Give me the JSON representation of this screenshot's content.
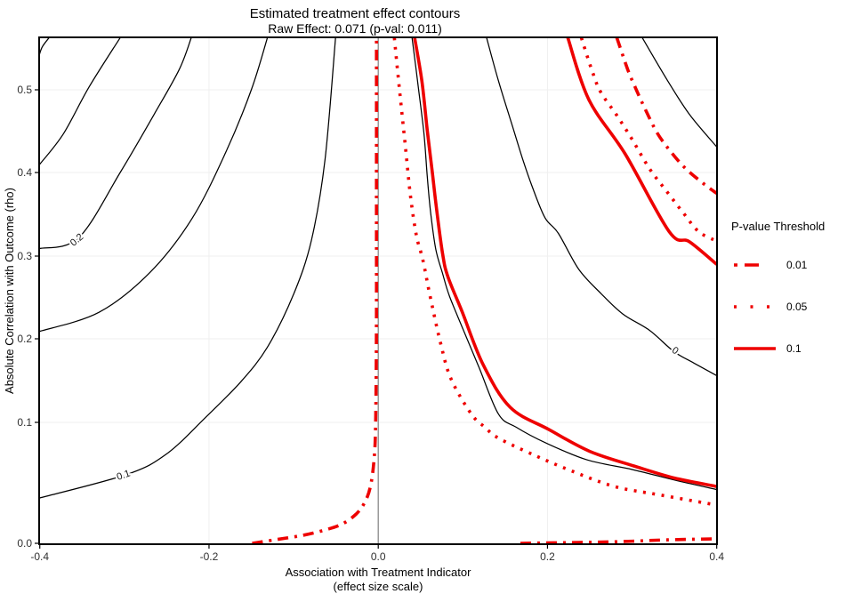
{
  "title": "Estimated treatment effect contours",
  "subtitle": "Raw Effect: 0.071 (p-val: 0.011)",
  "raw_effect": "0.071",
  "p_value": "0.011",
  "chart_data": {
    "type": "contour",
    "title": "Estimated treatment effect contours",
    "subtitle": "Raw Effect: 0.071 (p-val: 0.011)",
    "x_axis": {
      "title_line1": "Association with Treatment Indicator",
      "title_line2": "(effect size scale)",
      "range": [
        -0.4,
        0.4
      ],
      "ticks": [
        {
          "v": -0.4,
          "label": "-0.4"
        },
        {
          "v": -0.2,
          "label": "-0.2"
        },
        {
          "v": 0.0,
          "label": "0.0"
        },
        {
          "v": 0.2,
          "label": "0.2"
        },
        {
          "v": 0.4,
          "label": "0.4"
        }
      ]
    },
    "y_axis": {
      "title": "Absolute Correlation with Outcome (rho)",
      "range": [
        0,
        0.563
      ],
      "ticks": [
        {
          "v": 0.0,
          "label": "0.0"
        },
        {
          "v": 0.1,
          "label": "0.1"
        },
        {
          "v": 0.2,
          "label": "0.2"
        },
        {
          "v": 0.3,
          "label": "0.3"
        },
        {
          "v": 0.4,
          "label": "0.4"
        },
        {
          "v": 0.5,
          "label": "0.5"
        }
      ]
    },
    "grid": true,
    "zero_reference_line_x": 0.0,
    "colors": {
      "pvalue_red": "#EE0000",
      "contour_black": "#000000",
      "zero_line_gray": "#8A8A8A",
      "grid_gray": "#EFEFEF",
      "background": "#FFFFFF"
    },
    "black_effect_contours": [
      {
        "name": "effect-contour-top-corner",
        "points": [
          [
            -0.401,
            0.541
          ],
          [
            -0.397,
            0.552
          ],
          [
            -0.389,
            0.563
          ]
        ]
      },
      {
        "name": "effect-contour-upper-2",
        "points": [
          [
            -0.4,
            0.41
          ],
          [
            -0.372,
            0.447
          ],
          [
            -0.342,
            0.503
          ],
          [
            -0.305,
            0.563
          ]
        ]
      },
      {
        "name": "effect-contour-0.2",
        "level": "0.2",
        "points": [
          [
            -0.4,
            0.309
          ],
          [
            -0.354,
            0.322
          ],
          [
            -0.305,
            0.4
          ],
          [
            -0.265,
            0.47
          ],
          [
            -0.235,
            0.525
          ],
          [
            -0.221,
            0.563
          ]
        ]
      },
      {
        "name": "effect-contour-mid-left",
        "points": [
          [
            -0.4,
            0.209
          ],
          [
            -0.33,
            0.232
          ],
          [
            -0.27,
            0.28
          ],
          [
            -0.22,
            0.345
          ],
          [
            -0.18,
            0.425
          ],
          [
            -0.15,
            0.5
          ],
          [
            -0.131,
            0.563
          ]
        ]
      },
      {
        "name": "effect-contour-0.1",
        "level": "0.1",
        "points": [
          [
            -0.4,
            0.0375
          ],
          [
            -0.297,
            0.057
          ],
          [
            -0.25,
            0.074
          ],
          [
            -0.205,
            0.105
          ],
          [
            -0.163,
            0.148
          ],
          [
            -0.131,
            0.19
          ],
          [
            -0.1,
            0.254
          ],
          [
            -0.079,
            0.319
          ],
          [
            -0.063,
            0.415
          ],
          [
            -0.0505,
            0.563
          ]
        ]
      },
      {
        "name": "effect-contour-right-inner",
        "points": [
          [
            0.04,
            0.563
          ],
          [
            0.047,
            0.506
          ],
          [
            0.054,
            0.447
          ],
          [
            0.058,
            0.394
          ],
          [
            0.062,
            0.351
          ],
          [
            0.068,
            0.308
          ],
          [
            0.076,
            0.279
          ],
          [
            0.084,
            0.252
          ],
          [
            0.1,
            0.212
          ],
          [
            0.119,
            0.166
          ],
          [
            0.142,
            0.11
          ],
          [
            0.163,
            0.096
          ],
          [
            0.198,
            0.083
          ],
          [
            0.247,
            0.069
          ],
          [
            0.3,
            0.061
          ],
          [
            0.352,
            0.052
          ],
          [
            0.4,
            0.0445
          ]
        ]
      },
      {
        "name": "effect-contour-0",
        "level": "0",
        "points": [
          [
            0.128,
            0.563
          ],
          [
            0.142,
            0.511
          ],
          [
            0.158,
            0.458
          ],
          [
            0.171,
            0.415
          ],
          [
            0.182,
            0.383
          ],
          [
            0.197,
            0.346
          ],
          [
            0.213,
            0.327
          ],
          [
            0.237,
            0.284
          ],
          [
            0.263,
            0.255
          ],
          [
            0.289,
            0.23
          ],
          [
            0.321,
            0.21
          ],
          [
            0.349,
            0.185
          ],
          [
            0.373,
            0.171
          ],
          [
            0.4,
            0.156
          ]
        ]
      },
      {
        "name": "effect-contour-top-right",
        "points": [
          [
            0.312,
            0.563
          ],
          [
            0.342,
            0.511
          ],
          [
            0.368,
            0.47
          ],
          [
            0.4,
            0.431
          ]
        ]
      }
    ],
    "contour_labels": [
      {
        "text": "0.2",
        "x": -0.354,
        "rho": 0.321,
        "angle": -40
      },
      {
        "text": "0.1",
        "x": -0.3,
        "rho": 0.057,
        "angle": -19
      },
      {
        "text": "0",
        "x": 0.349,
        "rho": 0.187,
        "angle": 33
      }
    ],
    "pvalue_contours": [
      {
        "threshold": "0.01",
        "style": "dashdot",
        "branches": [
          [
            [
              -0.149,
              0.0
            ],
            [
              -0.121,
              0.003
            ],
            [
              -0.089,
              0.0066
            ],
            [
              -0.063,
              0.011
            ],
            [
              -0.042,
              0.0162
            ],
            [
              -0.026,
              0.0243
            ],
            [
              -0.016,
              0.0338
            ],
            [
              -0.0095,
              0.0463
            ],
            [
              -0.0053,
              0.0669
            ],
            [
              -0.0032,
              0.0963
            ],
            [
              -0.0022,
              0.2
            ],
            [
              -0.0021,
              0.35
            ],
            [
              -0.0021,
              0.563
            ]
          ],
          [
            [
              0.282,
              0.563
            ],
            [
              0.295,
              0.524
            ],
            [
              0.305,
              0.5
            ],
            [
              0.313,
              0.482
            ],
            [
              0.329,
              0.449
            ],
            [
              0.345,
              0.426
            ],
            [
              0.363,
              0.405
            ],
            [
              0.384,
              0.387
            ],
            [
              0.4,
              0.375
            ]
          ],
          [
            [
              0.168,
              0.0
            ],
            [
              0.237,
              0.0007
            ],
            [
              0.289,
              0.0015
            ],
            [
              0.342,
              0.0029
            ],
            [
              0.4,
              0.0037
            ]
          ]
        ]
      },
      {
        "threshold": "0.05",
        "style": "dotted",
        "branches": [
          [
            [
              0.019,
              0.563
            ],
            [
              0.025,
              0.501
            ],
            [
              0.0315,
              0.437
            ],
            [
              0.038,
              0.373
            ],
            [
              0.045,
              0.325
            ],
            [
              0.0526,
              0.296
            ],
            [
              0.061,
              0.253
            ],
            [
              0.0736,
              0.195
            ],
            [
              0.086,
              0.152
            ],
            [
              0.11,
              0.11
            ],
            [
              0.126,
              0.096
            ],
            [
              0.142,
              0.087
            ],
            [
              0.184,
              0.073
            ],
            [
              0.228,
              0.06
            ],
            [
              0.279,
              0.047
            ],
            [
              0.333,
              0.04
            ],
            [
              0.4,
              0.0316
            ]
          ],
          [
            [
              0.24,
              0.563
            ],
            [
              0.253,
              0.522
            ],
            [
              0.263,
              0.497
            ],
            [
              0.282,
              0.469
            ],
            [
              0.3,
              0.44
            ],
            [
              0.321,
              0.404
            ],
            [
              0.342,
              0.376
            ],
            [
              0.361,
              0.351
            ],
            [
              0.379,
              0.329
            ],
            [
              0.4,
              0.318
            ]
          ]
        ]
      },
      {
        "threshold": "0.1",
        "style": "solid",
        "branches": [
          [
            [
              0.043,
              0.563
            ],
            [
              0.0515,
              0.511
            ],
            [
              0.058,
              0.45
            ],
            [
              0.064,
              0.399
            ],
            [
              0.069,
              0.356
            ],
            [
              0.076,
              0.303
            ],
            [
              0.082,
              0.276
            ],
            [
              0.099,
              0.233
            ],
            [
              0.124,
              0.169
            ],
            [
              0.156,
              0.118
            ],
            [
              0.202,
              0.094
            ],
            [
              0.25,
              0.076
            ],
            [
              0.302,
              0.064
            ],
            [
              0.35,
              0.054
            ],
            [
              0.4,
              0.047
            ]
          ],
          [
            [
              0.224,
              0.563
            ],
            [
              0.249,
              0.488
            ],
            [
              0.292,
              0.422
            ],
            [
              0.344,
              0.329
            ],
            [
              0.368,
              0.317
            ],
            [
              0.4,
              0.29
            ]
          ]
        ]
      }
    ],
    "legend": {
      "title": "P-value Threshold",
      "position": "right",
      "items": [
        {
          "label": "0.01",
          "style": "dashdot"
        },
        {
          "label": "0.05",
          "style": "dotted"
        },
        {
          "label": "0.1",
          "style": "solid"
        }
      ]
    }
  }
}
